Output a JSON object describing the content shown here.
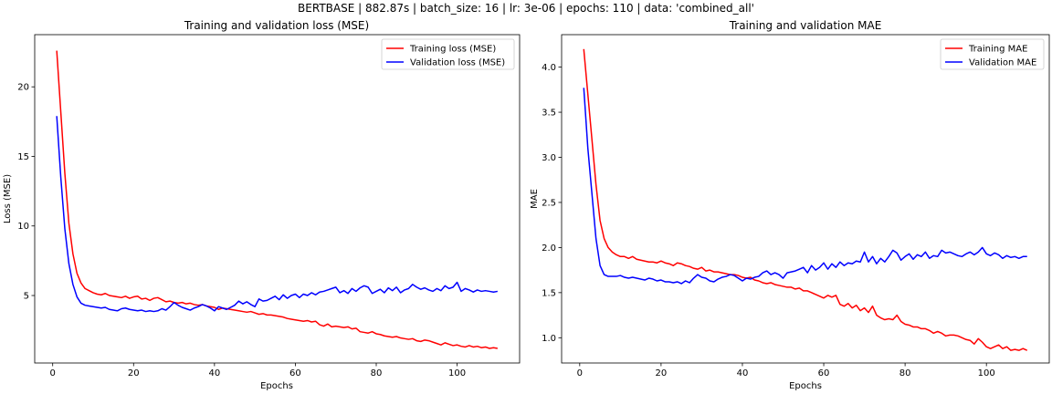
{
  "figure": {
    "suptitle": "BERTBASE | 882.87s | batch_size: 16 | lr: 3e-06 | epochs: 110 | data: 'combined_all'"
  },
  "chart_data": [
    {
      "type": "line",
      "title": "Training and validation loss (MSE)",
      "xlabel": "Epochs",
      "ylabel": "Loss (MSE)",
      "xlim": [
        -4.45,
        115.45
      ],
      "ylim": [
        0.15,
        23.75
      ],
      "xticks": [
        0,
        20,
        40,
        60,
        80,
        100
      ],
      "yticks": [
        5,
        10,
        15,
        20
      ],
      "legend": "top-right",
      "grid": false,
      "x": [
        1,
        2,
        3,
        4,
        5,
        6,
        7,
        8,
        9,
        10,
        11,
        12,
        13,
        14,
        15,
        16,
        17,
        18,
        19,
        20,
        21,
        22,
        23,
        24,
        25,
        26,
        27,
        28,
        29,
        30,
        31,
        32,
        33,
        34,
        35,
        36,
        37,
        38,
        39,
        40,
        41,
        42,
        43,
        44,
        45,
        46,
        47,
        48,
        49,
        50,
        51,
        52,
        53,
        54,
        55,
        56,
        57,
        58,
        59,
        60,
        61,
        62,
        63,
        64,
        65,
        66,
        67,
        68,
        69,
        70,
        71,
        72,
        73,
        74,
        75,
        76,
        77,
        78,
        79,
        80,
        81,
        82,
        83,
        84,
        85,
        86,
        87,
        88,
        89,
        90,
        91,
        92,
        93,
        94,
        95,
        96,
        97,
        98,
        99,
        100,
        101,
        102,
        103,
        104,
        105,
        106,
        107,
        108,
        109,
        110
      ],
      "series": [
        {
          "name": "Training loss (MSE)",
          "color": "#ff0000",
          "values": [
            22.6,
            18.2,
            13.8,
            10.2,
            8.0,
            6.6,
            5.9,
            5.5,
            5.35,
            5.2,
            5.1,
            5.05,
            5.15,
            5.0,
            4.95,
            4.9,
            4.85,
            4.95,
            4.8,
            4.9,
            4.95,
            4.75,
            4.8,
            4.65,
            4.8,
            4.85,
            4.7,
            4.55,
            4.6,
            4.5,
            4.45,
            4.5,
            4.4,
            4.45,
            4.35,
            4.3,
            4.35,
            4.25,
            4.2,
            4.15,
            4.0,
            4.1,
            4.05,
            4.0,
            3.95,
            3.9,
            3.85,
            3.8,
            3.85,
            3.75,
            3.65,
            3.7,
            3.6,
            3.6,
            3.55,
            3.5,
            3.45,
            3.35,
            3.3,
            3.25,
            3.2,
            3.15,
            3.2,
            3.1,
            3.15,
            2.9,
            2.8,
            2.95,
            2.75,
            2.8,
            2.75,
            2.7,
            2.75,
            2.6,
            2.65,
            2.4,
            2.35,
            2.3,
            2.4,
            2.25,
            2.2,
            2.1,
            2.05,
            2.0,
            2.05,
            1.95,
            1.9,
            1.85,
            1.9,
            1.75,
            1.7,
            1.8,
            1.75,
            1.65,
            1.55,
            1.45,
            1.6,
            1.5,
            1.4,
            1.45,
            1.35,
            1.3,
            1.4,
            1.3,
            1.35,
            1.25,
            1.3,
            1.2,
            1.25,
            1.2
          ]
        },
        {
          "name": "Validation loss (MSE)",
          "color": "#0000ff",
          "values": [
            17.9,
            13.5,
            9.8,
            7.3,
            5.8,
            4.9,
            4.45,
            4.3,
            4.25,
            4.2,
            4.15,
            4.1,
            4.15,
            4.0,
            3.95,
            3.9,
            4.05,
            4.1,
            4.0,
            3.95,
            3.9,
            3.95,
            3.85,
            3.9,
            3.85,
            3.9,
            4.05,
            3.95,
            4.2,
            4.5,
            4.3,
            4.15,
            4.05,
            3.95,
            4.1,
            4.2,
            4.35,
            4.25,
            4.1,
            3.9,
            4.2,
            4.1,
            4.0,
            4.15,
            4.3,
            4.6,
            4.4,
            4.55,
            4.35,
            4.2,
            4.75,
            4.6,
            4.65,
            4.8,
            4.95,
            4.7,
            5.05,
            4.8,
            5.0,
            5.1,
            4.85,
            5.1,
            5.0,
            5.2,
            5.05,
            5.25,
            5.3,
            5.4,
            5.5,
            5.6,
            5.2,
            5.35,
            5.15,
            5.5,
            5.3,
            5.55,
            5.7,
            5.6,
            5.15,
            5.3,
            5.45,
            5.2,
            5.55,
            5.35,
            5.6,
            5.2,
            5.4,
            5.5,
            5.8,
            5.6,
            5.45,
            5.55,
            5.4,
            5.3,
            5.5,
            5.35,
            5.7,
            5.5,
            5.6,
            5.95,
            5.3,
            5.5,
            5.4,
            5.25,
            5.4,
            5.3,
            5.35,
            5.3,
            5.25,
            5.3
          ]
        }
      ]
    },
    {
      "type": "line",
      "title": "Training and validation MAE",
      "xlabel": "Epochs",
      "ylabel": "MAE",
      "xlim": [
        -4.45,
        115.45
      ],
      "ylim": [
        0.72,
        4.36
      ],
      "xticks": [
        0,
        20,
        40,
        60,
        80,
        100
      ],
      "yticks": [
        1.0,
        1.5,
        2.0,
        2.5,
        3.0,
        3.5,
        4.0
      ],
      "legend": "top-right",
      "grid": false,
      "x": [
        1,
        2,
        3,
        4,
        5,
        6,
        7,
        8,
        9,
        10,
        11,
        12,
        13,
        14,
        15,
        16,
        17,
        18,
        19,
        20,
        21,
        22,
        23,
        24,
        25,
        26,
        27,
        28,
        29,
        30,
        31,
        32,
        33,
        34,
        35,
        36,
        37,
        38,
        39,
        40,
        41,
        42,
        43,
        44,
        45,
        46,
        47,
        48,
        49,
        50,
        51,
        52,
        53,
        54,
        55,
        56,
        57,
        58,
        59,
        60,
        61,
        62,
        63,
        64,
        65,
        66,
        67,
        68,
        69,
        70,
        71,
        72,
        73,
        74,
        75,
        76,
        77,
        78,
        79,
        80,
        81,
        82,
        83,
        84,
        85,
        86,
        87,
        88,
        89,
        90,
        91,
        92,
        93,
        94,
        95,
        96,
        97,
        98,
        99,
        100,
        101,
        102,
        103,
        104,
        105,
        106,
        107,
        108,
        109,
        110
      ],
      "series": [
        {
          "name": "Training MAE",
          "color": "#ff0000",
          "values": [
            4.2,
            3.7,
            3.2,
            2.7,
            2.3,
            2.1,
            2.0,
            1.95,
            1.92,
            1.9,
            1.9,
            1.88,
            1.9,
            1.87,
            1.86,
            1.85,
            1.84,
            1.84,
            1.83,
            1.85,
            1.83,
            1.82,
            1.8,
            1.83,
            1.82,
            1.8,
            1.79,
            1.77,
            1.76,
            1.78,
            1.74,
            1.75,
            1.73,
            1.73,
            1.72,
            1.71,
            1.7,
            1.7,
            1.69,
            1.67,
            1.66,
            1.67,
            1.64,
            1.63,
            1.61,
            1.6,
            1.61,
            1.59,
            1.58,
            1.57,
            1.56,
            1.56,
            1.54,
            1.55,
            1.52,
            1.52,
            1.5,
            1.48,
            1.46,
            1.44,
            1.47,
            1.45,
            1.47,
            1.37,
            1.35,
            1.38,
            1.33,
            1.36,
            1.3,
            1.33,
            1.28,
            1.35,
            1.25,
            1.22,
            1.2,
            1.21,
            1.2,
            1.25,
            1.18,
            1.15,
            1.14,
            1.12,
            1.12,
            1.1,
            1.1,
            1.08,
            1.05,
            1.07,
            1.05,
            1.02,
            1.03,
            1.03,
            1.02,
            1.0,
            0.98,
            0.97,
            0.93,
            0.99,
            0.95,
            0.9,
            0.88,
            0.9,
            0.92,
            0.88,
            0.9,
            0.86,
            0.87,
            0.86,
            0.88,
            0.86
          ]
        },
        {
          "name": "Validation MAE",
          "color": "#0000ff",
          "values": [
            3.77,
            3.1,
            2.6,
            2.1,
            1.8,
            1.7,
            1.68,
            1.68,
            1.68,
            1.69,
            1.67,
            1.66,
            1.67,
            1.66,
            1.65,
            1.64,
            1.66,
            1.65,
            1.63,
            1.64,
            1.62,
            1.62,
            1.61,
            1.62,
            1.6,
            1.63,
            1.61,
            1.66,
            1.7,
            1.67,
            1.66,
            1.63,
            1.62,
            1.65,
            1.67,
            1.68,
            1.7,
            1.69,
            1.66,
            1.63,
            1.66,
            1.65,
            1.67,
            1.68,
            1.72,
            1.74,
            1.7,
            1.72,
            1.7,
            1.66,
            1.72,
            1.73,
            1.74,
            1.76,
            1.78,
            1.72,
            1.8,
            1.75,
            1.78,
            1.83,
            1.76,
            1.82,
            1.78,
            1.84,
            1.8,
            1.83,
            1.82,
            1.85,
            1.84,
            1.95,
            1.84,
            1.9,
            1.82,
            1.88,
            1.84,
            1.9,
            1.97,
            1.94,
            1.86,
            1.9,
            1.93,
            1.87,
            1.92,
            1.9,
            1.95,
            1.88,
            1.91,
            1.9,
            1.97,
            1.94,
            1.95,
            1.93,
            1.91,
            1.9,
            1.93,
            1.95,
            1.92,
            1.95,
            2.0,
            1.93,
            1.91,
            1.94,
            1.92,
            1.88,
            1.91,
            1.89,
            1.9,
            1.88,
            1.9,
            1.9
          ]
        }
      ]
    }
  ]
}
